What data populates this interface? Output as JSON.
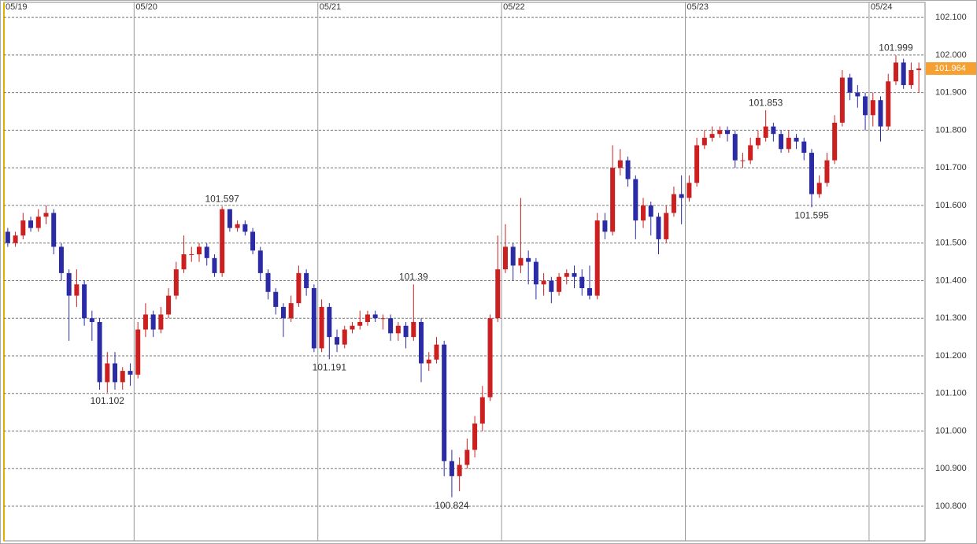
{
  "chart_data": {
    "type": "candlestick",
    "categories": [
      "05/19",
      null,
      null,
      null,
      null,
      null,
      null,
      null,
      null,
      null,
      null,
      null,
      null,
      null,
      null,
      null,
      null,
      "05/20",
      null,
      null,
      null,
      null,
      null,
      null,
      null,
      null,
      null,
      null,
      null,
      null,
      null,
      null,
      null,
      null,
      null,
      null,
      null,
      null,
      null,
      null,
      null,
      "05/21",
      null,
      null,
      null,
      null,
      null,
      null,
      null,
      null,
      null,
      null,
      null,
      null,
      null,
      null,
      null,
      null,
      null,
      null,
      null,
      null,
      null,
      null,
      null,
      "05/22",
      null,
      null,
      null,
      null,
      null,
      null,
      null,
      null,
      null,
      null,
      null,
      null,
      null,
      null,
      null,
      null,
      null,
      null,
      null,
      null,
      null,
      null,
      null,
      "05/23",
      null,
      null,
      null,
      null,
      null,
      null,
      null,
      null,
      null,
      null,
      null,
      null,
      null,
      null,
      null,
      null,
      null,
      null,
      null,
      null,
      null,
      null,
      null,
      "05/24",
      null,
      null,
      null,
      null,
      null,
      null
    ],
    "open": [
      101.53,
      101.5,
      101.52,
      101.56,
      101.54,
      101.57,
      101.58,
      101.49,
      101.42,
      101.36,
      101.39,
      101.3,
      101.29,
      101.13,
      101.18,
      101.13,
      101.16,
      101.15,
      101.27,
      101.31,
      101.27,
      101.31,
      101.36,
      101.43,
      101.47,
      101.47,
      101.49,
      101.46,
      101.42,
      101.59,
      101.54,
      101.55,
      101.53,
      101.48,
      101.42,
      101.37,
      101.33,
      101.3,
      101.34,
      101.42,
      101.38,
      101.22,
      101.33,
      101.25,
      101.23,
      101.27,
      101.28,
      101.29,
      101.31,
      101.3,
      101.3,
      101.26,
      101.28,
      101.25,
      101.29,
      101.18,
      101.19,
      101.23,
      100.92,
      100.88,
      100.91,
      100.95,
      101.02,
      101.09,
      101.3,
      101.43,
      101.49,
      101.44,
      101.46,
      101.45,
      101.39,
      101.4,
      101.37,
      101.41,
      101.42,
      101.41,
      101.38,
      101.36,
      101.56,
      101.53,
      101.7,
      101.72,
      101.67,
      101.56,
      101.6,
      101.57,
      101.51,
      101.58,
      101.63,
      101.62,
      101.66,
      101.76,
      101.78,
      101.79,
      101.8,
      101.79,
      101.72,
      101.72,
      101.76,
      101.78,
      101.81,
      101.79,
      101.75,
      101.78,
      101.77,
      101.74,
      101.63,
      101.66,
      101.72,
      101.82,
      101.94,
      101.9,
      101.89,
      101.84,
      101.88,
      101.81,
      101.93,
      101.98,
      101.92,
      101.96
    ],
    "high": [
      101.54,
      101.53,
      101.58,
      101.57,
      101.59,
      101.6,
      101.59,
      101.5,
      101.43,
      101.43,
      101.4,
      101.32,
      101.3,
      101.21,
      101.21,
      101.17,
      101.18,
      101.29,
      101.34,
      101.32,
      101.33,
      101.38,
      101.45,
      101.52,
      101.49,
      101.5,
      101.5,
      101.47,
      101.597,
      101.59,
      101.56,
      101.56,
      101.54,
      101.49,
      101.43,
      101.38,
      101.34,
      101.36,
      101.44,
      101.43,
      101.39,
      101.35,
      101.34,
      101.27,
      101.28,
      101.29,
      101.32,
      101.32,
      101.32,
      101.31,
      101.31,
      101.29,
      101.29,
      101.39,
      101.3,
      101.21,
      101.25,
      101.24,
      100.95,
      100.93,
      100.98,
      101.04,
      101.12,
      101.31,
      101.52,
      101.55,
      101.5,
      101.62,
      101.48,
      101.46,
      101.42,
      101.41,
      101.42,
      101.43,
      101.44,
      101.43,
      101.44,
      101.58,
      101.58,
      101.76,
      101.75,
      101.73,
      101.68,
      101.62,
      101.61,
      101.58,
      101.6,
      101.65,
      101.68,
      101.68,
      101.78,
      101.8,
      101.81,
      101.81,
      101.81,
      101.8,
      101.74,
      101.78,
      101.8,
      101.853,
      101.82,
      101.8,
      101.8,
      101.79,
      101.78,
      101.75,
      101.68,
      101.74,
      101.84,
      101.96,
      101.95,
      101.92,
      101.9,
      101.9,
      101.89,
      101.95,
      101.999,
      101.99,
      101.98,
      101.98
    ],
    "low": [
      101.49,
      101.49,
      101.51,
      101.53,
      101.53,
      101.55,
      101.47,
      101.4,
      101.24,
      101.33,
      101.28,
      101.24,
      101.11,
      101.102,
      101.11,
      101.11,
      101.12,
      101.14,
      101.25,
      101.25,
      101.26,
      101.3,
      101.35,
      101.42,
      101.45,
      101.45,
      101.44,
      101.41,
      101.41,
      101.53,
      101.53,
      101.52,
      101.47,
      101.4,
      101.35,
      101.31,
      101.25,
      101.29,
      101.33,
      101.36,
      101.21,
      101.21,
      101.191,
      101.21,
      101.22,
      101.26,
      101.27,
      101.28,
      101.29,
      101.27,
      101.24,
      101.24,
      101.22,
      101.24,
      101.13,
      101.16,
      101.18,
      100.88,
      100.824,
      100.84,
      100.9,
      100.93,
      101.0,
      101.08,
      101.29,
      101.42,
      101.4,
      101.42,
      101.39,
      101.35,
      101.36,
      101.34,
      101.36,
      101.39,
      101.38,
      101.36,
      101.35,
      101.35,
      101.51,
      101.52,
      101.68,
      101.65,
      101.51,
      101.54,
      101.52,
      101.47,
      101.5,
      101.57,
      101.55,
      101.61,
      101.65,
      101.75,
      101.77,
      101.78,
      101.77,
      101.7,
      101.7,
      101.71,
      101.75,
      101.77,
      101.77,
      101.74,
      101.74,
      101.75,
      101.72,
      101.595,
      101.62,
      101.65,
      101.71,
      101.81,
      101.88,
      101.86,
      101.8,
      101.81,
      101.77,
      101.8,
      101.92,
      101.91,
      101.91,
      101.9
    ],
    "close": [
      101.5,
      101.52,
      101.56,
      101.54,
      101.57,
      101.58,
      101.49,
      101.42,
      101.36,
      101.39,
      101.3,
      101.29,
      101.13,
      101.18,
      101.13,
      101.16,
      101.15,
      101.27,
      101.31,
      101.27,
      101.31,
      101.36,
      101.43,
      101.47,
      101.47,
      101.49,
      101.46,
      101.42,
      101.59,
      101.54,
      101.55,
      101.53,
      101.48,
      101.42,
      101.37,
      101.33,
      101.3,
      101.34,
      101.42,
      101.38,
      101.22,
      101.33,
      101.25,
      101.23,
      101.27,
      101.28,
      101.29,
      101.31,
      101.3,
      101.3,
      101.26,
      101.28,
      101.25,
      101.29,
      101.18,
      101.19,
      101.23,
      100.92,
      100.88,
      100.91,
      100.95,
      101.02,
      101.09,
      101.3,
      101.43,
      101.49,
      101.44,
      101.46,
      101.45,
      101.39,
      101.4,
      101.37,
      101.41,
      101.42,
      101.41,
      101.38,
      101.36,
      101.56,
      101.53,
      101.7,
      101.72,
      101.67,
      101.56,
      101.6,
      101.57,
      101.51,
      101.58,
      101.63,
      101.62,
      101.66,
      101.76,
      101.78,
      101.79,
      101.8,
      101.79,
      101.72,
      101.72,
      101.76,
      101.78,
      101.81,
      101.79,
      101.75,
      101.78,
      101.77,
      101.74,
      101.63,
      101.66,
      101.72,
      101.82,
      101.94,
      101.9,
      101.89,
      101.84,
      101.88,
      101.81,
      101.93,
      101.98,
      101.92,
      101.96,
      101.964
    ],
    "up_color": "#cc1f1f",
    "down_color": "#2b2ba6",
    "high_label_color": "#d9822b",
    "low_label_color": "#1fa31f",
    "last_price_color": "#f5a030",
    "high_label_indices": [
      28,
      53,
      99,
      116
    ],
    "low_label_indices": [
      13,
      42,
      58,
      105
    ],
    "ylim": [
      100.708,
      102.14
    ],
    "yticks": [
      {
        "value": 100.8,
        "label": "100.800"
      },
      {
        "value": 100.9,
        "label": "100.900"
      },
      {
        "value": 101.0,
        "label": "101.000"
      },
      {
        "value": 101.1,
        "label": "101.100"
      },
      {
        "value": 101.2,
        "label": "101.200"
      },
      {
        "value": 101.3,
        "label": "101.300"
      },
      {
        "value": 101.4,
        "label": "101.400"
      },
      {
        "value": 101.5,
        "label": "101.500"
      },
      {
        "value": 101.6,
        "label": "101.600"
      },
      {
        "value": 101.7,
        "label": "101.700"
      },
      {
        "value": 101.8,
        "label": "101.800"
      },
      {
        "value": 101.9,
        "label": "101.900"
      },
      {
        "value": 102.0,
        "label": "102.000"
      },
      {
        "value": 102.1,
        "label": "102.100"
      }
    ],
    "grid": true
  }
}
